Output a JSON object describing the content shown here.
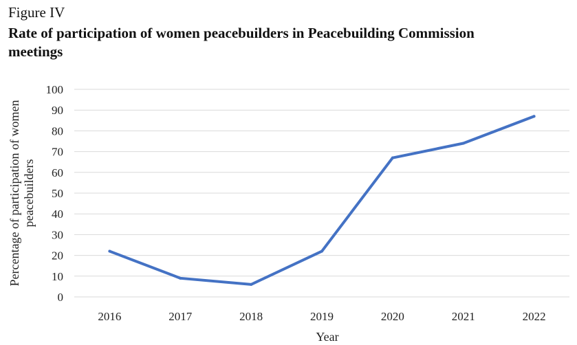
{
  "figure": {
    "label": "Figure IV",
    "title": "Rate of participation of women peacebuilders in Peacebuilding Commission meetings"
  },
  "chart_data": {
    "type": "line",
    "x": [
      "2016",
      "2017",
      "2018",
      "2019",
      "2020",
      "2021",
      "2022"
    ],
    "series": [
      {
        "values": [
          22,
          9,
          6,
          22,
          67,
          74,
          87
        ]
      }
    ],
    "xlabel": "Year",
    "ylabel_lines": [
      "Percentage of participation of women",
      "peacebuilders"
    ],
    "ylim": [
      0,
      100
    ],
    "yticks": [
      "0",
      "10",
      "20",
      "30",
      "40",
      "50",
      "60",
      "70",
      "80",
      "90",
      "100"
    ],
    "grid": true,
    "line_color": "#4472c4",
    "grid_color": "#d9d9d9"
  }
}
